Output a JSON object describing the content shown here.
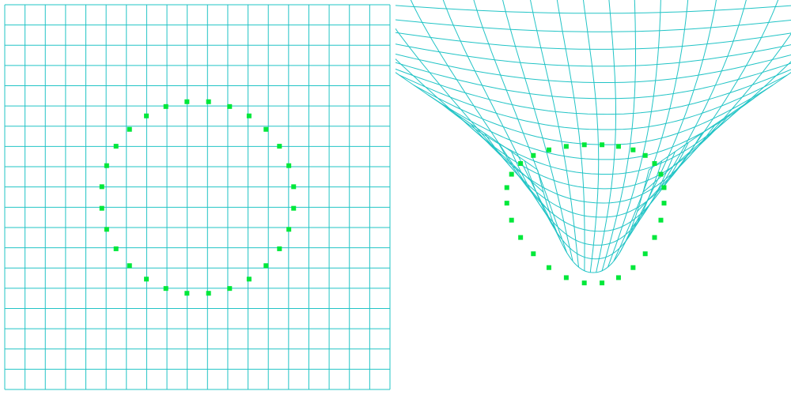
{
  "colors": {
    "grid": "#22c4c6",
    "markers": "#00e83a",
    "background": "#ffffff"
  },
  "panels": [
    {
      "name": "rest-grid",
      "grid_divisions": 19
    },
    {
      "name": "deformed-mesh",
      "grid_divisions": 19
    }
  ],
  "markers": {
    "count": 28,
    "shape": "circle-of-points"
  }
}
